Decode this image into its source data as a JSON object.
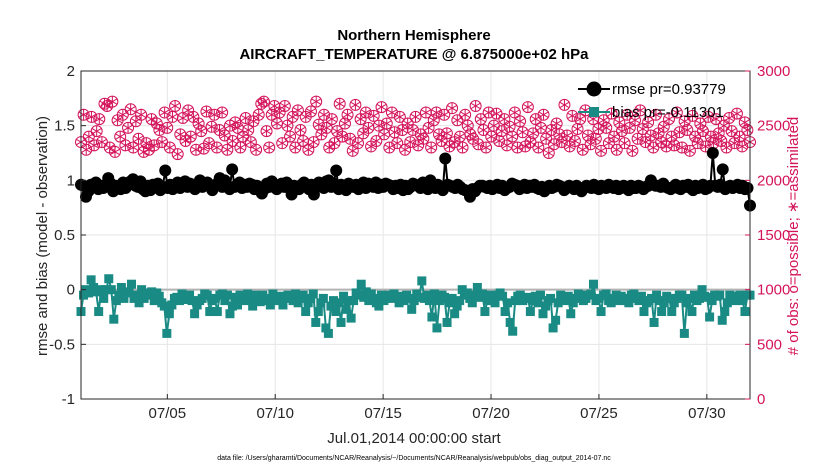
{
  "chart_data": {
    "type": "line",
    "title_line1": "Northern Hemisphere",
    "title_line2": "AIRCRAFT_TEMPERATURE @ 6.875000e+02 hPa",
    "xlabel": "Jul.01,2014 00:00:00 start",
    "ylabel_left": "rmse and bias (model - observation)",
    "ylabel_right": "# of obs: o=possible; ∗=assimilated",
    "footnote": "data file: /Users/gharamti/Documents/NCAR/Reanalysis/~/Documents/NCAR/Reanalysis/webpub/obs_diag_output_2014-07.nc",
    "x_range": [
      1,
      32
    ],
    "x_ticks": [
      {
        "label": "07/05",
        "value": 5
      },
      {
        "label": "07/10",
        "value": 10
      },
      {
        "label": "07/15",
        "value": 15
      },
      {
        "label": "07/20",
        "value": 20
      },
      {
        "label": "07/25",
        "value": 25
      },
      {
        "label": "07/30",
        "value": 30
      }
    ],
    "y_left_range": [
      -1,
      2
    ],
    "y_left_ticks": [
      "-1",
      "-0.5",
      "0",
      "0.5",
      "1",
      "1.5",
      "2"
    ],
    "y_right_range": [
      0,
      3000
    ],
    "y_right_ticks": [
      "0",
      "500",
      "1000",
      "1500",
      "2000",
      "2500",
      "3000"
    ],
    "colors": {
      "rmse": "#000000",
      "bias": "#1a8a84",
      "obs": "#d4145a",
      "grid": "#e6e6e6",
      "zero_line": "#b3b3b3"
    },
    "series": [
      {
        "name": "rmse",
        "legend": "rmse pr=0.93779",
        "axis": "left",
        "values": [
          0.96,
          0.95,
          0.85,
          0.9,
          0.96,
          0.94,
          0.98,
          0.92,
          0.95,
          0.93,
          0.96,
          1.02,
          0.97,
          0.9,
          0.95,
          0.94,
          0.92,
          0.98,
          0.93,
          0.97,
          0.99,
          1.01,
          0.95,
          0.94,
          0.99,
          0.92,
          0.9,
          0.95,
          0.91,
          0.96,
          0.94,
          0.97,
          0.91,
          0.94,
          1.09,
          0.93,
          0.96,
          0.92,
          0.95,
          0.98,
          0.93,
          0.96,
          0.99,
          0.94,
          0.97,
          0.95,
          0.92,
          0.96,
          1.0,
          0.94,
          0.97,
          0.98,
          0.95,
          0.91,
          0.95,
          0.97,
          1.02,
          0.94,
          1.0,
          0.95,
          0.92,
          1.1,
          0.94,
          0.96,
          0.98,
          0.93,
          0.96,
          0.94,
          0.97,
          0.96,
          0.92,
          0.95,
          0.91,
          0.88,
          0.92,
          0.97,
          0.94,
          0.99,
          0.96,
          0.92,
          0.95,
          0.97,
          0.94,
          0.98,
          0.93,
          0.87,
          0.95,
          0.93,
          0.92,
          0.96,
          0.98,
          0.94,
          0.92,
          0.96,
          0.87,
          0.94,
          0.98,
          0.96,
          0.93,
          0.99,
          1.0,
          0.94,
          0.97,
          1.09,
          0.92,
          0.96,
          0.95,
          0.91,
          0.97,
          0.95,
          0.94,
          0.96,
          0.92,
          0.95,
          0.98,
          0.93,
          0.97,
          0.95,
          0.94,
          0.98,
          0.93,
          0.96,
          0.94,
          0.97,
          0.96,
          0.95,
          0.92,
          0.95,
          0.93,
          0.96,
          0.91,
          0.95,
          0.92,
          0.94,
          0.97,
          0.96,
          0.95,
          0.93,
          0.98,
          0.95,
          0.92,
          1.0,
          0.95,
          0.93,
          0.96,
          0.94,
          0.91,
          1.2,
          0.96,
          0.95,
          0.94,
          0.93,
          0.96,
          0.94,
          0.92,
          0.91,
          0.9,
          0.85,
          0.92,
          0.9,
          0.93,
          0.95,
          0.95,
          0.94,
          0.93,
          0.95,
          0.92,
          0.94,
          0.96,
          0.93,
          0.95,
          0.91,
          0.93,
          0.94,
          0.97,
          0.96,
          0.95,
          0.92,
          0.94,
          0.96,
          0.93,
          0.95,
          0.94,
          0.96,
          0.93,
          0.92,
          0.94,
          0.9,
          0.93,
          0.95,
          0.93,
          0.94,
          0.96,
          0.95,
          0.94,
          0.91,
          0.93,
          0.95,
          0.94,
          0.92,
          0.95,
          0.93,
          0.9,
          0.93,
          0.95,
          0.94,
          0.93,
          0.96,
          0.93,
          0.92,
          0.95,
          0.94,
          0.93,
          0.96,
          0.94,
          0.93,
          0.95,
          0.92,
          0.93,
          0.95,
          0.94,
          0.91,
          0.95,
          0.93,
          0.93,
          0.95,
          0.94,
          0.92,
          0.94,
          0.95,
          1.0,
          0.96,
          0.95,
          0.95,
          0.94,
          0.97,
          0.94,
          0.93,
          0.92,
          0.94,
          0.96,
          0.93,
          0.92,
          0.95,
          0.94,
          0.96,
          0.93,
          0.91,
          0.95,
          0.93,
          0.94,
          0.96,
          0.92,
          0.93,
          0.95,
          1.25,
          0.95,
          0.94,
          0.96,
          1.1,
          0.92,
          0.94,
          0.95,
          0.93,
          0.94,
          0.96,
          0.93,
          0.95,
          0.92,
          0.93,
          0.77
        ]
      },
      {
        "name": "bias",
        "legend": "bias pr=-0.11301",
        "axis": "left",
        "values": [
          -0.2,
          -0.05,
          0.0,
          -0.03,
          0.09,
          0.02,
          -0.02,
          -0.2,
          0.0,
          -0.08,
          0.0,
          0.1,
          0.0,
          -0.27,
          -0.1,
          -0.05,
          0.02,
          -0.08,
          -0.03,
          -0.02,
          0.05,
          -0.08,
          -0.05,
          -0.12,
          0.0,
          -0.08,
          -0.05,
          -0.03,
          -0.02,
          -0.1,
          -0.03,
          -0.06,
          -0.12,
          -0.15,
          -0.4,
          -0.22,
          -0.14,
          -0.08,
          -0.07,
          -0.1,
          -0.04,
          -0.09,
          -0.08,
          -0.05,
          -0.1,
          -0.22,
          -0.14,
          -0.1,
          -0.08,
          -0.04,
          -0.05,
          -0.2,
          -0.1,
          -0.08,
          -0.2,
          -0.05,
          -0.04,
          -0.1,
          -0.05,
          -0.22,
          -0.15,
          -0.07,
          -0.14,
          -0.05,
          -0.08,
          -0.1,
          -0.04,
          -0.08,
          -0.15,
          -0.05,
          -0.07,
          -0.11,
          -0.05,
          -0.08,
          -0.1,
          -0.14,
          -0.04,
          -0.1,
          -0.08,
          -0.06,
          -0.14,
          -0.07,
          -0.05,
          -0.08,
          -0.1,
          -0.04,
          -0.12,
          -0.08,
          -0.05,
          -0.2,
          -0.12,
          -0.08,
          -0.04,
          -0.3,
          -0.2,
          -0.12,
          -0.08,
          -0.35,
          -0.4,
          -0.15,
          -0.1,
          -0.2,
          -0.12,
          -0.3,
          -0.06,
          -0.18,
          -0.1,
          -0.26,
          -0.1,
          -0.03,
          -0.05,
          0.05,
          -0.07,
          -0.02,
          -0.1,
          -0.04,
          -0.08,
          -0.12,
          -0.15,
          -0.05,
          -0.1,
          -0.06,
          -0.05,
          -0.08,
          -0.04,
          -0.07,
          -0.12,
          -0.06,
          -0.1,
          -0.05,
          -0.08,
          -0.18,
          -0.1,
          -0.04,
          -0.07,
          0.08,
          -0.08,
          -0.05,
          -0.1,
          -0.25,
          -0.04,
          -0.35,
          -0.1,
          -0.05,
          -0.07,
          -0.3,
          -0.12,
          -0.08,
          -0.22,
          -0.15,
          -0.1,
          0.0,
          -0.05,
          -0.03,
          -0.08,
          -0.12,
          -0.05,
          0.02,
          -0.07,
          -0.04,
          -0.2,
          -0.1,
          -0.05,
          -0.08,
          -0.12,
          -0.05,
          -0.03,
          -0.06,
          -0.2,
          -0.12,
          -0.3,
          -0.38,
          -0.1,
          -0.06,
          -0.05,
          -0.1,
          -0.08,
          -0.07,
          -0.2,
          -0.1,
          -0.06,
          -0.12,
          -0.05,
          -0.22,
          -0.15,
          -0.1,
          -0.08,
          -0.35,
          -0.28,
          -0.12,
          -0.05,
          -0.08,
          -0.1,
          -0.06,
          -0.22,
          -0.12,
          -0.08,
          -0.04,
          -0.05,
          -0.1,
          -0.08,
          -0.05,
          -0.04,
          0.05,
          -0.1,
          -0.08,
          -0.2,
          -0.05,
          -0.04,
          -0.1,
          -0.12,
          -0.08,
          -0.05,
          -0.1,
          -0.06,
          -0.08,
          -0.1,
          -0.12,
          -0.05,
          -0.04,
          -0.08,
          -0.1,
          -0.06,
          -0.2,
          -0.12,
          -0.1,
          -0.08,
          -0.3,
          -0.05,
          -0.1,
          -0.2,
          -0.12,
          -0.06,
          -0.08,
          -0.2,
          -0.12,
          -0.08,
          -0.05,
          -0.05,
          -0.4,
          -0.12,
          -0.08,
          -0.2,
          -0.05,
          -0.1,
          -0.08,
          0.0,
          -0.06,
          -0.07,
          -0.25,
          -0.1,
          -0.05,
          -0.06,
          -0.05,
          -0.28,
          -0.2,
          -0.12,
          -0.05,
          -0.08,
          -0.1,
          -0.06,
          -0.05,
          -0.1,
          -0.2,
          -0.05,
          -0.05
        ]
      }
    ],
    "obs_count": {
      "axis": "right",
      "marker": "circle-with-asterisk",
      "legend_note": "possible and assimilated counts coincide",
      "values": [
        2350,
        2600,
        2280,
        2400,
        2580,
        2320,
        2450,
        2560,
        2350,
        2700,
        2680,
        2300,
        2720,
        2260,
        2550,
        2400,
        2600,
        2320,
        2480,
        2650,
        2300,
        2540,
        2380,
        2600,
        2260,
        2340,
        2280,
        2560,
        2320,
        2520,
        2460,
        2350,
        2620,
        2480,
        2300,
        2580,
        2680,
        2240,
        2420,
        2570,
        2360,
        2640,
        2400,
        2580,
        2280,
        2520,
        2450,
        2290,
        2630,
        2340,
        2490,
        2600,
        2300,
        2460,
        2620,
        2410,
        2280,
        2500,
        2360,
        2530,
        2480,
        2300,
        2400,
        2570,
        2460,
        2350,
        2540,
        2280,
        2600,
        2700,
        2720,
        2450,
        2300,
        2600,
        2680,
        2520,
        2620,
        2340,
        2680,
        2500,
        2400,
        2580,
        2300,
        2640,
        2460,
        2360,
        2580,
        2280,
        2630,
        2350,
        2720,
        2510,
        2420,
        2600,
        2480,
        2300,
        2560,
        2340,
        2450,
        2700,
        2400,
        2520,
        2600,
        2380,
        2270,
        2690,
        2340,
        2560,
        2430,
        2620,
        2480,
        2310,
        2590,
        2360,
        2500,
        2670,
        2420,
        2520,
        2300,
        2620,
        2440,
        2340,
        2580,
        2460,
        2280,
        2520,
        2350,
        2460,
        2580,
        2320,
        2420,
        2380,
        2620,
        2480,
        2300,
        2550,
        2620,
        2420,
        2360,
        2600,
        2430,
        2310,
        2660,
        2350,
        2550,
        2400,
        2300,
        2600,
        2500,
        2420,
        2380,
        2680,
        2330,
        2560,
        2460,
        2300,
        2620,
        2400,
        2500,
        2610,
        2360,
        2450,
        2560,
        2320,
        2490,
        2400,
        2620,
        2300,
        2540,
        2440,
        2310,
        2670,
        2350,
        2430,
        2560,
        2300,
        2480,
        2600,
        2380,
        2250,
        2460,
        2330,
        2520,
        2420,
        2350,
        2690,
        2410,
        2310,
        2590,
        2360,
        2470,
        2560,
        2280,
        2640,
        2410,
        2330,
        2560,
        2380,
        2470,
        2270,
        2550,
        2480,
        2340,
        2610,
        2400,
        2280,
        2530,
        2450,
        2340,
        2600,
        2480,
        2270,
        2550,
        2380,
        2640,
        2470,
        2350,
        2530,
        2410,
        2300,
        2600,
        2430,
        2350,
        2490,
        2310,
        2560,
        2400,
        2320,
        2620,
        2440,
        2300,
        2540,
        2460,
        2270,
        2590,
        2400,
        2340,
        2520,
        2450,
        2310,
        2580,
        2400,
        2340,
        2560,
        2430,
        2360,
        2500,
        2300,
        2570,
        2450,
        2340,
        2610,
        2400,
        2310,
        2530,
        2460,
        2350
      ]
    }
  }
}
